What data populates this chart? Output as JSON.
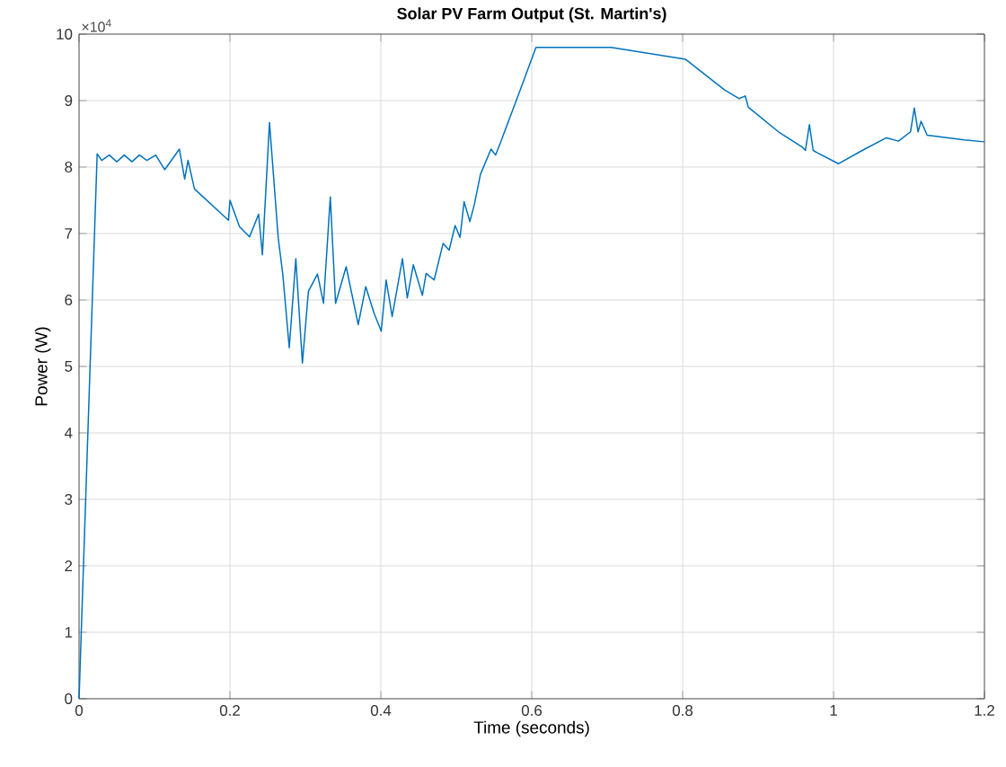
{
  "chart_data": {
    "type": "line",
    "title": "Solar PV Farm Output (St. Martin's)",
    "xlabel": "Time (seconds)",
    "ylabel": "Power (W)",
    "annotations": [
      "×10$^{4}$"
    ],
    "xlim": [
      0,
      1.2
    ],
    "ylim": [
      0,
      10
    ],
    "xticks": [
      0,
      0.2,
      0.4,
      0.6,
      0.8,
      1,
      1.2
    ],
    "yticks": [
      0,
      1,
      2,
      3,
      4,
      5,
      6,
      7,
      8,
      9,
      10
    ],
    "grid": true,
    "series": [
      {
        "color": "#0072bd",
        "x": [
          0,
          0.024,
          0.03,
          0.04,
          0.05,
          0.06,
          0.07,
          0.08,
          0.09,
          0.1016,
          0.1135,
          0.133,
          0.14,
          0.1444,
          0.153,
          0.198,
          0.2,
          0.2127,
          0.226,
          0.238,
          0.243,
          0.2524,
          0.264,
          0.27,
          0.2786,
          0.2873,
          0.296,
          0.304,
          0.316,
          0.324,
          0.333,
          0.34,
          0.354,
          0.37,
          0.38,
          0.391,
          0.4005,
          0.407,
          0.415,
          0.4286,
          0.435,
          0.443,
          0.455,
          0.46,
          0.4706,
          0.4825,
          0.4905,
          0.4984,
          0.505,
          0.5103,
          0.518,
          0.524,
          0.532,
          0.546,
          0.552,
          0.558,
          0.586,
          0.6056,
          0.705,
          0.804,
          0.8556,
          0.875,
          0.883,
          0.887,
          0.927,
          0.9587,
          0.9627,
          0.968,
          0.973,
          0.979,
          1.0064,
          1.038,
          1.07,
          1.086,
          1.102,
          1.107,
          1.112,
          1.116,
          1.124,
          1.173,
          1.2
        ],
        "values": [
          0,
          8.2,
          8.1,
          8.18,
          8.08,
          8.18,
          8.08,
          8.18,
          8.1,
          8.18,
          7.96,
          8.27,
          7.82,
          8.1,
          7.67,
          7.2,
          7.5,
          7.1,
          6.95,
          7.29,
          6.68,
          8.67,
          6.93,
          6.39,
          5.28,
          6.62,
          5.05,
          6.13,
          6.39,
          5.95,
          7.55,
          5.95,
          6.5,
          5.63,
          6.2,
          5.8,
          5.53,
          6.3,
          5.75,
          6.62,
          6.03,
          6.53,
          6.07,
          6.4,
          6.3,
          6.85,
          6.75,
          7.12,
          6.94,
          7.48,
          7.18,
          7.44,
          7.89,
          8.27,
          8.18,
          8.35,
          9.2,
          9.8,
          9.8,
          9.62,
          9.16,
          9.03,
          9.07,
          8.9,
          8.53,
          8.3,
          8.25,
          8.64,
          8.25,
          8.21,
          8.05,
          8.25,
          8.44,
          8.39,
          8.53,
          8.89,
          8.53,
          8.69,
          8.48,
          8.41,
          8.38
        ]
      }
    ]
  }
}
